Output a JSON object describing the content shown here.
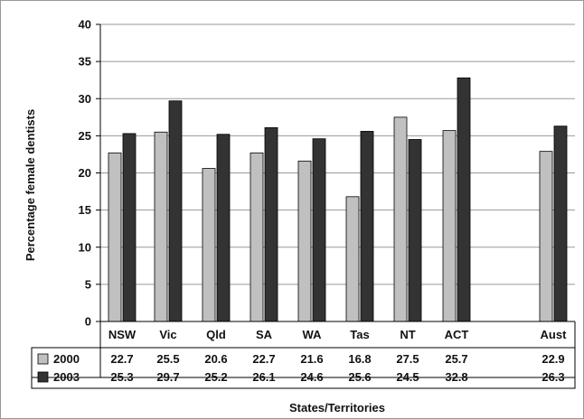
{
  "chart_data": {
    "type": "bar",
    "categories": [
      "NSW",
      "Vic",
      "Qld",
      "SA",
      "WA",
      "Tas",
      "NT",
      "ACT",
      "Aust"
    ],
    "series": [
      {
        "name": "2000",
        "color": "#c0c0c0",
        "values": [
          22.7,
          25.5,
          20.6,
          22.7,
          21.6,
          16.8,
          27.5,
          25.7,
          22.9
        ],
        "labels": [
          "22.7",
          "25.5",
          "20.6",
          "22.7",
          "21.6",
          "16.8",
          "27.5",
          "25.7",
          "22.9"
        ]
      },
      {
        "name": "2003",
        "color": "#333333",
        "values": [
          25.3,
          29.7,
          25.2,
          26.1,
          24.6,
          25.6,
          24.5,
          32.8,
          26.3
        ],
        "labels": [
          "25.3",
          "29.7",
          "25.2",
          "26.1",
          "24.6",
          "25.6",
          "24.5",
          "32.8",
          "26.3"
        ]
      }
    ],
    "xlabel": "States/Territories",
    "ylabel": "Percentage female dentists",
    "ylim": [
      0,
      40
    ],
    "yticks": [
      "0",
      "5",
      "10",
      "15",
      "20",
      "25",
      "30",
      "35",
      "40"
    ],
    "grid": true,
    "legend": "data-table-below"
  }
}
